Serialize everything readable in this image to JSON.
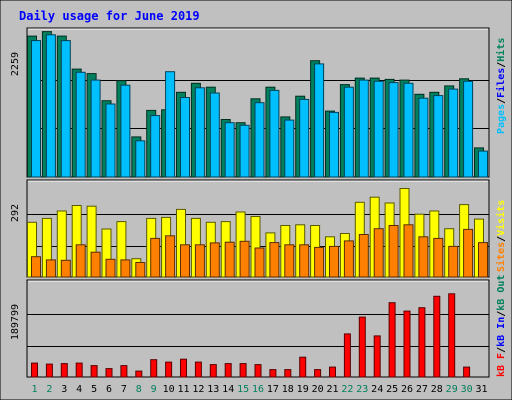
{
  "chart_data": {
    "title": "Daily usage for June 2019",
    "type": "bar",
    "days": [
      "1",
      "2",
      "3",
      "4",
      "5",
      "6",
      "7",
      "8",
      "9",
      "10",
      "11",
      "12",
      "13",
      "14",
      "15",
      "16",
      "17",
      "18",
      "19",
      "20",
      "21",
      "22",
      "23",
      "24",
      "25",
      "26",
      "27",
      "28",
      "29",
      "30",
      "31"
    ],
    "weekend_days": [
      1,
      2,
      8,
      9,
      15,
      16,
      22,
      23,
      29,
      30
    ],
    "panels": [
      {
        "id": "hits",
        "ymax_label": "2259",
        "ymax": 2259,
        "series": [
          {
            "name": "Hits",
            "color": "#00805c",
            "values": [
              2180,
              2250,
              2180,
              1670,
              1600,
              1180,
              1490,
              620,
              1030,
              1040,
              1310,
              1450,
              1390,
              890,
              840,
              1210,
              1390,
              930,
              1250,
              1800,
              1020,
              1430,
              1530,
              1530,
              1510,
              1500,
              1280,
              1310,
              1410,
              1520,
              450
            ]
          },
          {
            "name": "Files",
            "color": "#0000ff",
            "values": [
              0,
              0,
              0,
              0,
              0,
              0,
              0,
              0,
              0,
              0,
              0,
              0,
              0,
              0,
              0,
              0,
              0,
              0,
              0,
              0,
              0,
              0,
              0,
              0,
              0,
              0,
              0,
              0,
              0,
              0,
              0
            ]
          },
          {
            "name": "Pages",
            "color": "#00bfff",
            "values": [
              2110,
              2200,
              2110,
              1620,
              1500,
              1130,
              1420,
              560,
              950,
              1630,
              1230,
              1380,
              1300,
              840,
              800,
              1150,
              1340,
              880,
              1200,
              1750,
              1000,
              1390,
              1500,
              1480,
              1460,
              1450,
              1220,
              1260,
              1360,
              1480,
              400
            ]
          }
        ]
      },
      {
        "id": "visits",
        "ymax_label": "292",
        "ymax": 292,
        "series": [
          {
            "name": "Visits",
            "color": "#ffff00",
            "values": [
              170,
              182,
              205,
              222,
              220,
              149,
              172,
              57,
              182,
              185,
              210,
              182,
              170,
              172,
              202,
              188,
              137,
              160,
              162,
              160,
              125,
              135,
              232,
              248,
              230,
              275,
              195,
              205,
              150,
              225,
              180
            ]
          },
          {
            "name": "Sites",
            "color": "#ff8000",
            "values": [
              63,
              53,
              52,
              100,
              77,
              55,
              53,
              45,
              120,
              128,
              100,
              100,
              106,
              108,
              111,
              90,
              107,
              100,
              100,
              92,
              95,
              112,
              132,
              150,
              160,
              162,
              125,
              120,
              95,
              148,
              107
            ]
          }
        ]
      },
      {
        "id": "kbytes",
        "ymax_label": "189799",
        "ymax": 189799,
        "series": [
          {
            "name": "kB Out",
            "color": "#00805c",
            "values": [
              0,
              0,
              0,
              0,
              0,
              0,
              0,
              0,
              0,
              0,
              0,
              0,
              0,
              0,
              0,
              0,
              0,
              0,
              0,
              0,
              0,
              0,
              0,
              0,
              0,
              0,
              0,
              0,
              0,
              0,
              0
            ]
          },
          {
            "name": "kB In",
            "color": "#0000ff",
            "values": [
              0,
              0,
              0,
              0,
              0,
              0,
              0,
              0,
              0,
              0,
              0,
              0,
              0,
              0,
              0,
              0,
              0,
              0,
              0,
              0,
              0,
              0,
              0,
              0,
              0,
              0,
              0,
              0,
              0,
              0,
              0
            ]
          },
          {
            "name": "kB F",
            "color": "#ff0000",
            "values": [
              28000,
              26000,
              27000,
              28000,
              23000,
              17000,
              23000,
              12000,
              35000,
              30000,
              36000,
              30000,
              25000,
              27000,
              27000,
              25000,
              15000,
              15000,
              40000,
              15000,
              20000,
              87000,
              121000,
              83000,
              150000,
              133000,
              140000,
              163000,
              168000,
              20000,
              0
            ]
          }
        ]
      }
    ],
    "right_labels": {
      "hits": [
        {
          "text": "Pages",
          "color": "#00bfff"
        },
        {
          "text": "/",
          "color": "#000000"
        },
        {
          "text": "Files",
          "color": "#0000ff"
        },
        {
          "text": "/",
          "color": "#000000"
        },
        {
          "text": "Hits",
          "color": "#00805c"
        }
      ],
      "visits": [
        {
          "text": "Sites",
          "color": "#ff8000"
        },
        {
          "text": "/",
          "color": "#000000"
        },
        {
          "text": "Visits",
          "color": "#ffff00"
        }
      ],
      "kbytes": [
        {
          "text": "kB F",
          "color": "#ff0000"
        },
        {
          "text": "/",
          "color": "#000000"
        },
        {
          "text": "kB In",
          "color": "#0000ff"
        },
        {
          "text": "/",
          "color": "#000000"
        },
        {
          "text": "kB Out",
          "color": "#00805c"
        }
      ]
    },
    "colors": {
      "background": "#c0c0c0",
      "title": "#0000ff",
      "weekday_label": "#000000",
      "weekend_label": "#00805c"
    }
  }
}
